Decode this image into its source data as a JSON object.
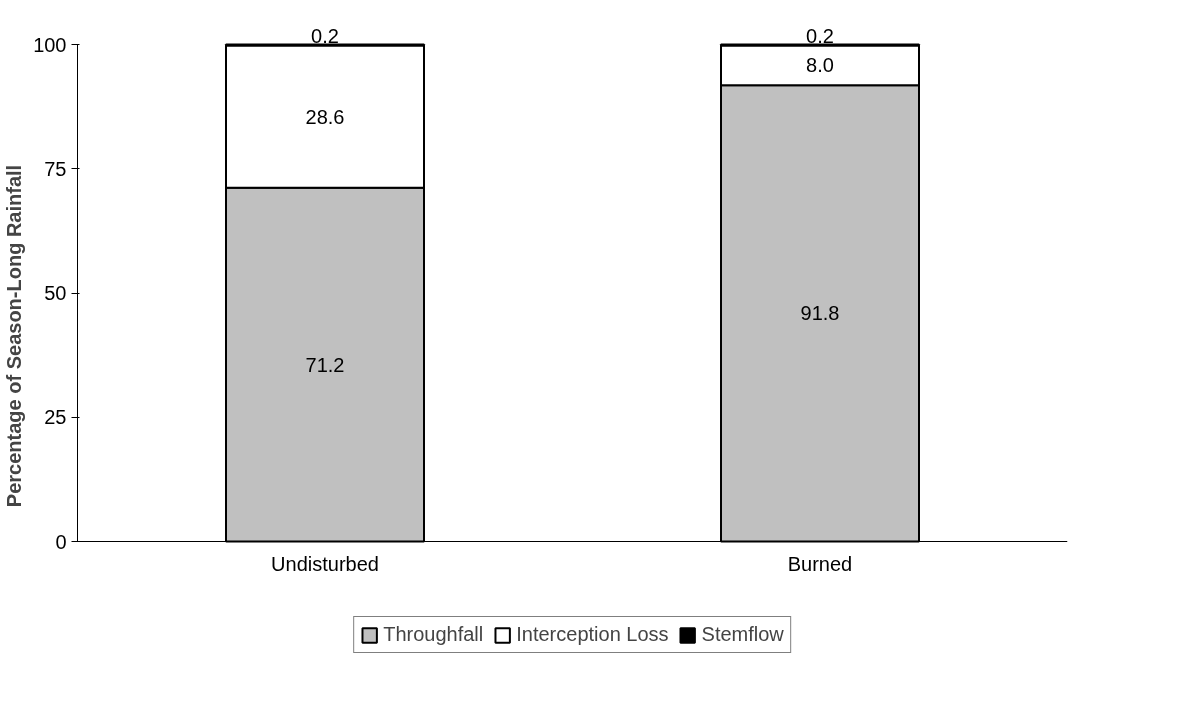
{
  "chart_data": {
    "type": "bar",
    "stacked": true,
    "ylabel": "Percentage of Season-Long Rainfall",
    "categories": [
      "Undisturbed",
      "Burned"
    ],
    "series": [
      {
        "name": "Throughfall",
        "color": "#c0c0c0",
        "values": [
          71.2,
          91.8
        ],
        "value_labels": [
          "71.2",
          "91.8"
        ]
      },
      {
        "name": "Interception Loss",
        "color": "#ffffff",
        "values": [
          28.6,
          8.0
        ],
        "value_labels": [
          "28.6",
          "8.0"
        ]
      },
      {
        "name": "Stemflow",
        "color": "#000000",
        "values": [
          0.2,
          0.2
        ],
        "value_labels": [
          "0.2",
          "0.2"
        ]
      }
    ],
    "ylim": [
      0,
      100
    ],
    "yticks": [
      0,
      25,
      50,
      75,
      100
    ],
    "grid": false,
    "legend": "bottom"
  }
}
